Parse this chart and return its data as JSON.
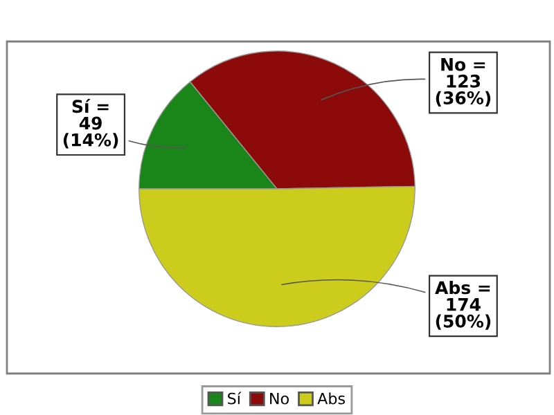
{
  "chart_data": {
    "type": "pie",
    "categories": [
      "Sí",
      "No",
      "Abs"
    ],
    "values": [
      49,
      123,
      174
    ],
    "colors": [
      "#1a861a",
      "#8c0a0a",
      "#cccc1c"
    ],
    "value_labels": [
      "Sí =\n49\n(14%)",
      "No =\n123\n(36%)",
      "Abs =\n174\n(50%)"
    ],
    "legend": "bottom"
  }
}
